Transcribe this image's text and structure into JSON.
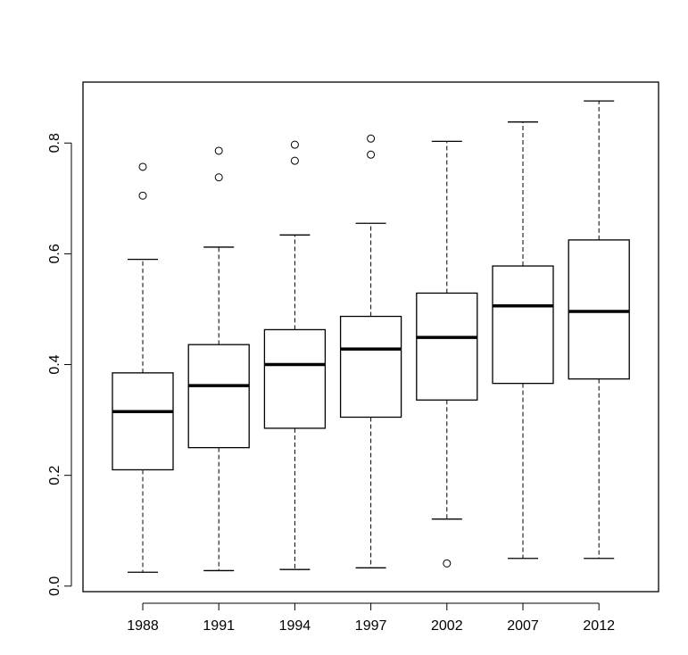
{
  "chart_data": {
    "type": "box",
    "title": "",
    "xlabel": "",
    "ylabel": "",
    "ylim": [
      -0.01,
      0.91
    ],
    "yticks": [
      0.0,
      0.2,
      0.4,
      0.6,
      0.8
    ],
    "ytick_labels": [
      "0.0",
      "0.2",
      "0.4",
      "0.6",
      "0.8"
    ],
    "grid": false,
    "categories": [
      "1988",
      "1991",
      "1994",
      "1997",
      "2002",
      "2007",
      "2012"
    ],
    "boxes": [
      {
        "whisker_low": 0.025,
        "q1": 0.21,
        "median": 0.315,
        "q3": 0.385,
        "whisker_high": 0.59,
        "outliers": [
          0.705,
          0.757
        ]
      },
      {
        "whisker_low": 0.028,
        "q1": 0.25,
        "median": 0.362,
        "q3": 0.436,
        "whisker_high": 0.612,
        "outliers": [
          0.738,
          0.786
        ]
      },
      {
        "whisker_low": 0.03,
        "q1": 0.285,
        "median": 0.4,
        "q3": 0.463,
        "whisker_high": 0.634,
        "outliers": [
          0.768,
          0.797
        ]
      },
      {
        "whisker_low": 0.033,
        "q1": 0.305,
        "median": 0.428,
        "q3": 0.487,
        "whisker_high": 0.655,
        "outliers": [
          0.779,
          0.808
        ]
      },
      {
        "whisker_low": 0.121,
        "q1": 0.336,
        "median": 0.449,
        "q3": 0.529,
        "whisker_high": 0.803,
        "outliers": [
          0.041
        ]
      },
      {
        "whisker_low": 0.05,
        "q1": 0.366,
        "median": 0.506,
        "q3": 0.578,
        "whisker_high": 0.838,
        "outliers": []
      },
      {
        "whisker_low": 0.05,
        "q1": 0.374,
        "median": 0.496,
        "q3": 0.625,
        "whisker_high": 0.876,
        "outliers": []
      }
    ]
  }
}
